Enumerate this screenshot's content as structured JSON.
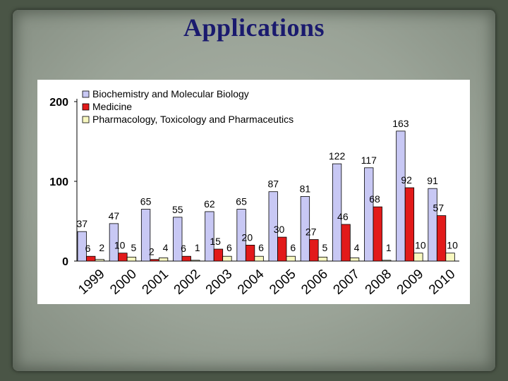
{
  "slide_title": "Applications",
  "chart_data": {
    "type": "bar",
    "categories": [
      "1999",
      "2000",
      "2001",
      "2002",
      "2003",
      "2004",
      "2005",
      "2006",
      "2007",
      "2008",
      "2009",
      "2010"
    ],
    "series": [
      {
        "name": "Biochemistry and Molecular Biology",
        "color": "#c8c8f4",
        "values": [
          37,
          47,
          65,
          55,
          62,
          65,
          87,
          81,
          122,
          117,
          163,
          91
        ]
      },
      {
        "name": "Medicine",
        "color": "#e21a1a",
        "values": [
          6,
          10,
          2,
          6,
          15,
          20,
          30,
          27,
          46,
          68,
          92,
          57
        ]
      },
      {
        "name": "Pharmacology, Toxicology and Pharmaceutics",
        "color": "#f8f8c0",
        "values": [
          2,
          5,
          4,
          1,
          6,
          6,
          6,
          5,
          4,
          1,
          10,
          10
        ]
      }
    ],
    "ylim": [
      0,
      200
    ],
    "yticks": [
      "0",
      "100",
      "200"
    ],
    "legend": "top-left",
    "xlabel": "",
    "ylabel": ""
  }
}
